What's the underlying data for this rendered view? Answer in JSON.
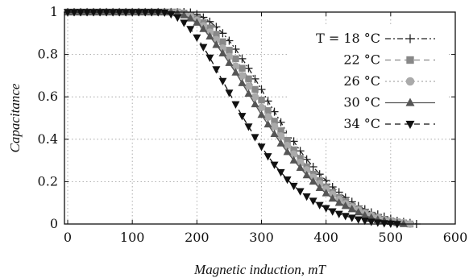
{
  "chart_data": {
    "type": "line",
    "title": "",
    "xlabel": "Magnetic induction, mT",
    "ylabel": "Capacitance",
    "xlim": [
      -5,
      600
    ],
    "ylim": [
      0,
      1
    ],
    "xticks": [
      "0",
      "100",
      "200",
      "300",
      "400",
      "500",
      "600"
    ],
    "yticks": [
      "0",
      "0.2",
      "0.4",
      "0.6",
      "0.8",
      "1"
    ],
    "grid": true,
    "legend_position": "top-right",
    "series": [
      {
        "name": "T = 18 °C",
        "marker": "plus",
        "line": "dash-dot",
        "color": "#222222",
        "x": [
          0,
          10,
          20,
          30,
          40,
          50,
          60,
          70,
          80,
          90,
          100,
          110,
          120,
          130,
          140,
          150,
          160,
          170,
          180,
          190,
          200,
          210,
          220,
          230,
          240,
          250,
          260,
          270,
          280,
          290,
          300,
          310,
          320,
          330,
          340,
          350,
          360,
          370,
          380,
          390,
          400,
          410,
          420,
          430,
          440,
          450,
          460,
          470,
          480,
          490,
          500,
          510,
          520,
          530,
          540
        ],
        "y": [
          1,
          1,
          1,
          1,
          1,
          1,
          1,
          1,
          1,
          1,
          1,
          1,
          1,
          1,
          1,
          1,
          1,
          1,
          1,
          0.998,
          0.99,
          0.975,
          0.955,
          0.93,
          0.9,
          0.865,
          0.825,
          0.78,
          0.735,
          0.685,
          0.635,
          0.58,
          0.53,
          0.48,
          0.43,
          0.39,
          0.345,
          0.305,
          0.27,
          0.235,
          0.205,
          0.175,
          0.15,
          0.125,
          0.105,
          0.085,
          0.07,
          0.055,
          0.045,
          0.035,
          0.025,
          0.015,
          0.01,
          0.005,
          0
        ]
      },
      {
        "name": "22 °C",
        "marker": "square",
        "line": "dashed",
        "color": "#888888",
        "x": [
          0,
          10,
          20,
          30,
          40,
          50,
          60,
          70,
          80,
          90,
          100,
          110,
          120,
          130,
          140,
          150,
          160,
          170,
          180,
          190,
          200,
          210,
          220,
          230,
          240,
          250,
          260,
          270,
          280,
          290,
          300,
          310,
          320,
          330,
          340,
          350,
          360,
          370,
          380,
          390,
          400,
          410,
          420,
          430,
          440,
          450,
          460,
          470,
          480,
          490,
          500,
          510,
          520,
          530
        ],
        "y": [
          1,
          1,
          1,
          1,
          1,
          1,
          1,
          1,
          1,
          1,
          1,
          1,
          1,
          1,
          1,
          1,
          1,
          1,
          0.995,
          0.985,
          0.97,
          0.95,
          0.925,
          0.895,
          0.86,
          0.82,
          0.78,
          0.735,
          0.685,
          0.635,
          0.585,
          0.535,
          0.485,
          0.44,
          0.395,
          0.35,
          0.31,
          0.27,
          0.235,
          0.205,
          0.175,
          0.15,
          0.125,
          0.105,
          0.085,
          0.07,
          0.055,
          0.04,
          0.03,
          0.02,
          0.015,
          0.01,
          0.005,
          0
        ]
      },
      {
        "name": "26 °C",
        "marker": "circle",
        "line": "dotted",
        "color": "#aaaaaa",
        "x": [
          0,
          10,
          20,
          30,
          40,
          50,
          60,
          70,
          80,
          90,
          100,
          110,
          120,
          130,
          140,
          150,
          160,
          170,
          180,
          190,
          200,
          210,
          220,
          230,
          240,
          250,
          260,
          270,
          280,
          290,
          300,
          310,
          320,
          330,
          340,
          350,
          360,
          370,
          380,
          390,
          400,
          410,
          420,
          430,
          440,
          450,
          460,
          470,
          480,
          490,
          500,
          510,
          520,
          530
        ],
        "y": [
          1,
          1,
          1,
          1,
          1,
          1,
          1,
          1,
          1,
          1,
          1,
          1,
          1,
          1,
          1,
          1,
          1,
          1,
          0.99,
          0.98,
          0.96,
          0.935,
          0.905,
          0.87,
          0.83,
          0.79,
          0.745,
          0.7,
          0.65,
          0.6,
          0.55,
          0.505,
          0.46,
          0.415,
          0.37,
          0.33,
          0.29,
          0.255,
          0.22,
          0.19,
          0.165,
          0.14,
          0.115,
          0.095,
          0.08,
          0.065,
          0.05,
          0.04,
          0.03,
          0.02,
          0.015,
          0.01,
          0.005,
          0
        ]
      },
      {
        "name": "30 °C",
        "marker": "triangle-up",
        "line": "solid",
        "color": "#555555",
        "x": [
          0,
          10,
          20,
          30,
          40,
          50,
          60,
          70,
          80,
          90,
          100,
          110,
          120,
          130,
          140,
          150,
          160,
          170,
          180,
          190,
          200,
          210,
          220,
          230,
          240,
          250,
          260,
          270,
          280,
          290,
          300,
          310,
          320,
          330,
          340,
          350,
          360,
          370,
          380,
          390,
          400,
          410,
          420,
          430,
          440,
          450,
          460,
          470,
          480,
          490,
          500,
          510,
          520
        ],
        "y": [
          1,
          1,
          1,
          1,
          1,
          1,
          1,
          1,
          1,
          1,
          1,
          1,
          1,
          1,
          1,
          1,
          1,
          0.995,
          0.985,
          0.97,
          0.95,
          0.92,
          0.885,
          0.845,
          0.805,
          0.76,
          0.715,
          0.665,
          0.615,
          0.565,
          0.515,
          0.47,
          0.425,
          0.38,
          0.34,
          0.3,
          0.265,
          0.23,
          0.2,
          0.17,
          0.145,
          0.12,
          0.1,
          0.085,
          0.07,
          0.055,
          0.04,
          0.03,
          0.02,
          0.015,
          0.01,
          0.005,
          0
        ]
      },
      {
        "name": "34 °C",
        "marker": "triangle-down",
        "line": "dashed",
        "color": "#111111",
        "x": [
          0,
          10,
          20,
          30,
          40,
          50,
          60,
          70,
          80,
          90,
          100,
          110,
          120,
          130,
          140,
          150,
          160,
          170,
          180,
          190,
          200,
          210,
          220,
          230,
          240,
          250,
          260,
          270,
          280,
          290,
          300,
          310,
          320,
          330,
          340,
          350,
          360,
          370,
          380,
          390,
          400,
          410,
          420,
          430,
          440,
          450,
          460,
          470,
          480,
          490,
          500,
          510
        ],
        "y": [
          1,
          1,
          1,
          1,
          1,
          1,
          1,
          1,
          1,
          1,
          1,
          1,
          1,
          1,
          1,
          0.998,
          0.99,
          0.975,
          0.95,
          0.92,
          0.88,
          0.835,
          0.785,
          0.73,
          0.675,
          0.62,
          0.565,
          0.51,
          0.46,
          0.41,
          0.365,
          0.32,
          0.28,
          0.245,
          0.21,
          0.18,
          0.155,
          0.13,
          0.11,
          0.09,
          0.075,
          0.06,
          0.048,
          0.038,
          0.03,
          0.022,
          0.016,
          0.011,
          0.007,
          0.004,
          0.002,
          0
        ]
      }
    ]
  }
}
